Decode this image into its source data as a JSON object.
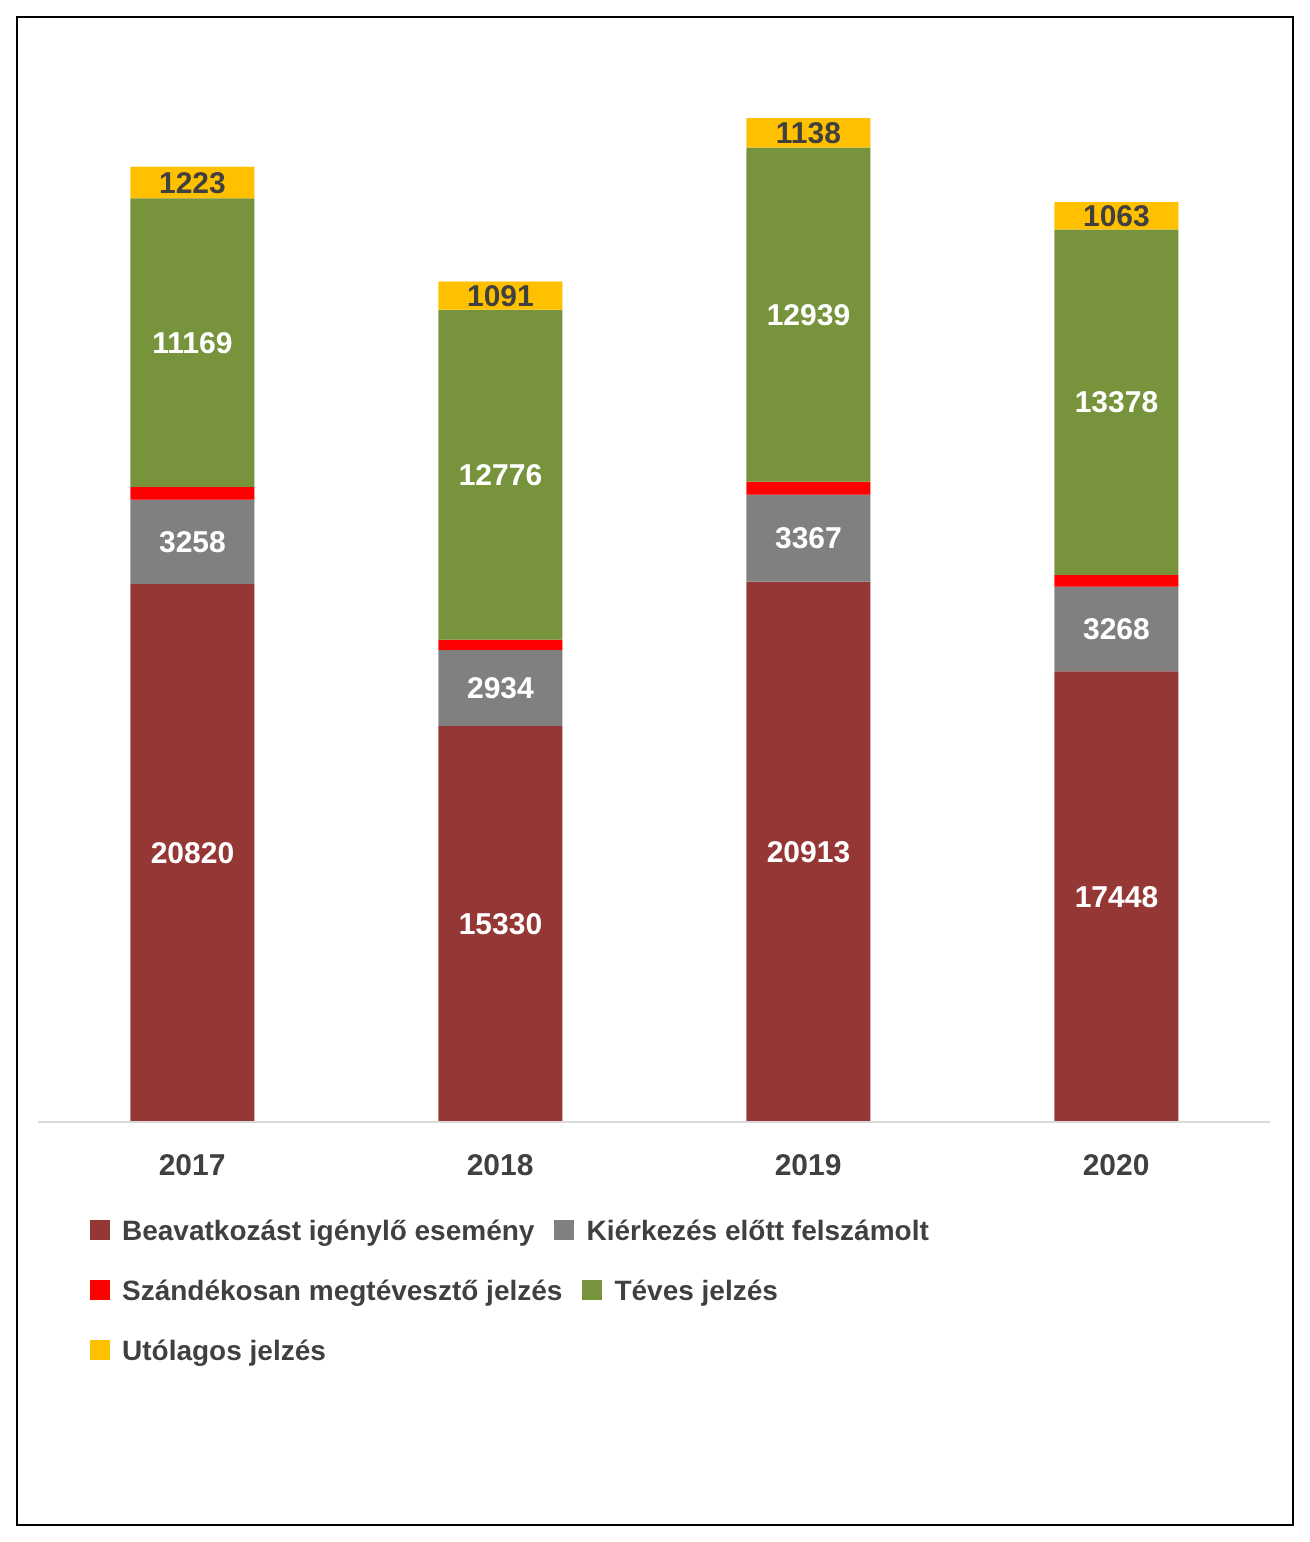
{
  "chart_data": {
    "type": "bar",
    "stacked": true,
    "categories": [
      "2017",
      "2018",
      "2019",
      "2020"
    ],
    "legend": "bottom",
    "grid": false,
    "series": [
      {
        "name": "Beavatkozást igénylő esemény",
        "color": "#953735",
        "values": [
          20820,
          15330,
          20913,
          17448
        ],
        "value_labels": [
          "20820",
          "15330",
          "20913",
          "17448"
        ]
      },
      {
        "name": "Kiérkezés előtt felszámolt",
        "color": "#808080",
        "values": [
          3258,
          2934,
          3367,
          3268
        ],
        "value_labels": [
          "3258",
          "2934",
          "3367",
          "3268"
        ]
      },
      {
        "name": "Szándékosan megtévesztő jelzés",
        "color": "#ff0000",
        "values": [
          500,
          400,
          500,
          450
        ],
        "value_labels": [
          null,
          null,
          null,
          null
        ]
      },
      {
        "name": "Téves jelzés",
        "color": "#77933c",
        "values": [
          11169,
          12776,
          12939,
          13378
        ],
        "value_labels": [
          "11169",
          "12776",
          "12939",
          "13378"
        ]
      },
      {
        "name": "Utólagos jelzés",
        "color": "#ffc000",
        "values": [
          1223,
          1091,
          1138,
          1063
        ],
        "value_labels": [
          "1223",
          "1091",
          "1138",
          "1063"
        ]
      }
    ]
  }
}
